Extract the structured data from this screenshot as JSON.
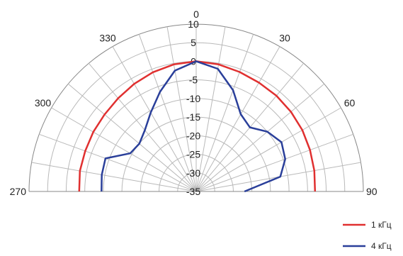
{
  "chart_data": {
    "type": "polar-line",
    "angle_ticks": [
      0,
      30,
      60,
      90,
      270,
      300,
      330
    ],
    "angle_labels": [
      "0",
      "30",
      "60",
      "90",
      "270",
      "300",
      "330"
    ],
    "radial_ticks": [
      10,
      5,
      0,
      -5,
      -10,
      -15,
      -20,
      -25,
      -30,
      -35
    ],
    "radial_labels": [
      "10",
      "5",
      "0",
      "-5",
      "-10",
      "-15",
      "-20",
      "-25",
      "-30",
      "-35"
    ],
    "rlim": [
      -35,
      10
    ],
    "theta_range_deg": [
      -90,
      90
    ],
    "grid": true,
    "legend_position": "bottom-right",
    "series": [
      {
        "name": "1 кГц",
        "color": "#e03030",
        "points": [
          {
            "angle": -90,
            "value": -3.5
          },
          {
            "angle": -80,
            "value": -3.2
          },
          {
            "angle": -70,
            "value": -3.2
          },
          {
            "angle": -60,
            "value": -3.0
          },
          {
            "angle": -50,
            "value": -2.8
          },
          {
            "angle": -40,
            "value": -2.3
          },
          {
            "angle": -30,
            "value": -1.6
          },
          {
            "angle": -20,
            "value": -0.9
          },
          {
            "angle": -10,
            "value": -0.3
          },
          {
            "angle": 0,
            "value": 0
          },
          {
            "angle": 10,
            "value": -0.3
          },
          {
            "angle": 20,
            "value": -0.8
          },
          {
            "angle": 30,
            "value": -1.2
          },
          {
            "angle": 40,
            "value": -1.4
          },
          {
            "angle": 50,
            "value": -1.7
          },
          {
            "angle": 60,
            "value": -2.0
          },
          {
            "angle": 70,
            "value": -2.4
          },
          {
            "angle": 80,
            "value": -2.7
          },
          {
            "angle": 90,
            "value": -3.0
          }
        ]
      },
      {
        "name": "4 кГц",
        "color": "#2a3f9a",
        "points": [
          {
            "angle": -90,
            "value": -9.5
          },
          {
            "angle": -80,
            "value": -9.2
          },
          {
            "angle": -70,
            "value": -9.0
          },
          {
            "angle": -60,
            "value": -14.5
          },
          {
            "angle": -50,
            "value": -15.0
          },
          {
            "angle": -40,
            "value": -13.5
          },
          {
            "angle": -30,
            "value": -10.5
          },
          {
            "angle": -20,
            "value": -6.5
          },
          {
            "angle": -10,
            "value": -2.0
          },
          {
            "angle": 0,
            "value": 0
          },
          {
            "angle": 10,
            "value": -1.5
          },
          {
            "angle": 20,
            "value": -6.0
          },
          {
            "angle": 30,
            "value": -11.0
          },
          {
            "angle": 40,
            "value": -12.5
          },
          {
            "angle": 50,
            "value": -10.0
          },
          {
            "angle": 60,
            "value": -8.5
          },
          {
            "angle": 70,
            "value": -9.5
          },
          {
            "angle": 80,
            "value": -12.0
          },
          {
            "angle": 90,
            "value": -22.0
          }
        ]
      }
    ]
  }
}
